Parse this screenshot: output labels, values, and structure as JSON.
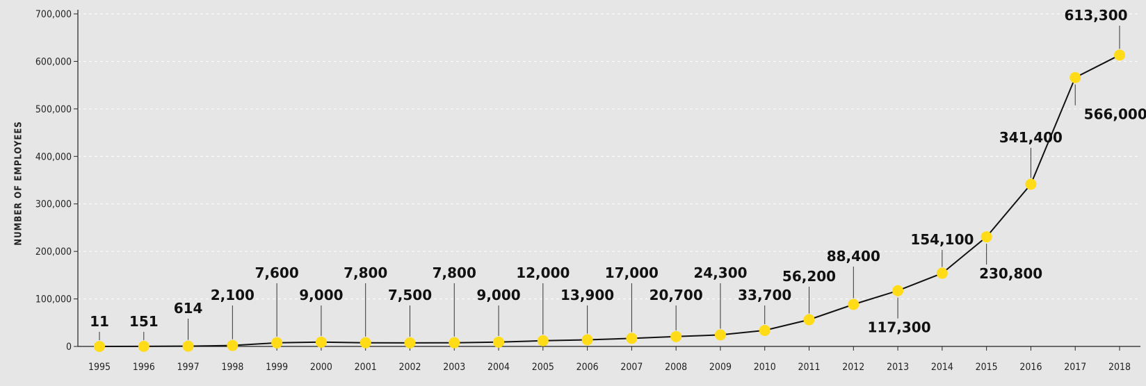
{
  "chart_data": {
    "type": "line",
    "ylabel": "NUMBER OF EMPLOYEES",
    "xlabel": "",
    "title": "",
    "ylim": [
      0,
      700000
    ],
    "yticks": [
      0,
      100000,
      200000,
      300000,
      400000,
      500000,
      600000,
      700000
    ],
    "ytick_labels": [
      "0",
      "100,000",
      "200,000",
      "300,000",
      "400,000",
      "500,000",
      "600,000",
      "700,000"
    ],
    "grid": "horizontal dashed",
    "categories": [
      "1995",
      "1996",
      "1997",
      "1998",
      "1999",
      "2000",
      "2001",
      "2002",
      "2003",
      "2004",
      "2005",
      "2006",
      "2007",
      "2008",
      "2009",
      "2010",
      "2011",
      "2012",
      "2013",
      "2014",
      "2015",
      "2016",
      "2017",
      "2018"
    ],
    "values": [
      11,
      151,
      614,
      2100,
      7600,
      9000,
      7800,
      7500,
      7800,
      9000,
      12000,
      13900,
      17000,
      20700,
      24300,
      33700,
      56200,
      88400,
      117300,
      154100,
      230800,
      341400,
      566000,
      613300
    ],
    "data_labels": [
      "11",
      "151",
      "614",
      "2,100",
      "7,600",
      "9,000",
      "7,800",
      "7,500",
      "7,800",
      "9,000",
      "12,000",
      "13,900",
      "17,000",
      "20,700",
      "24,300",
      "33,700",
      "56,200",
      "88,400",
      "117,300",
      "154,100",
      "230,800",
      "341,400",
      "566,000",
      "613,300"
    ],
    "label_side": [
      "above",
      "above",
      "above",
      "above",
      "above",
      "above",
      "above",
      "above",
      "above",
      "above",
      "above",
      "above",
      "above",
      "above",
      "above",
      "above",
      "above",
      "above",
      "below",
      "above",
      "below",
      "above",
      "below",
      "above"
    ],
    "colors": {
      "line": "#111111",
      "marker": "#ffdc17",
      "background": "#e6e6e6",
      "grid": "#ffffff",
      "axis": "#222222",
      "leader": "#333333"
    }
  }
}
